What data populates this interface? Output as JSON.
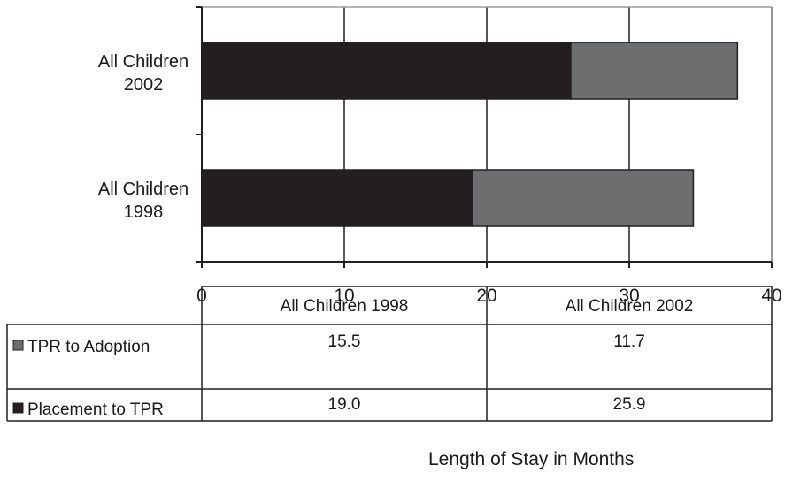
{
  "chart_data": {
    "type": "bar",
    "orientation": "horizontal",
    "stacked": true,
    "categories": [
      "All Children 1998",
      "All Children 2002"
    ],
    "category_label_lines": [
      [
        "All Children",
        "1998"
      ],
      [
        "All Children",
        "2002"
      ]
    ],
    "series": [
      {
        "name": "Placement to TPR",
        "values": [
          19.0,
          25.9
        ],
        "color": "#231f20"
      },
      {
        "name": "TPR to Adoption",
        "values": [
          15.5,
          11.7
        ],
        "color": "#6d6e70"
      }
    ],
    "xlim": [
      0,
      40
    ],
    "xticks": [
      "0",
      "10",
      "20",
      "30",
      "40"
    ],
    "xticks_values": [
      0,
      10,
      20,
      30,
      40
    ],
    "xlabel": "Length of Stay in Months",
    "grid": true,
    "legend": "data-table",
    "table": {
      "header": [
        "All Children 1998",
        "All Children 2002"
      ],
      "rows": [
        {
          "label": "TPR to Adoption",
          "values": [
            "15.5",
            "11.7"
          ],
          "color": "#6d6e70"
        },
        {
          "label": "Placement to TPR",
          "values": [
            "19.0",
            "25.9"
          ],
          "color": "#231f20"
        }
      ]
    }
  }
}
